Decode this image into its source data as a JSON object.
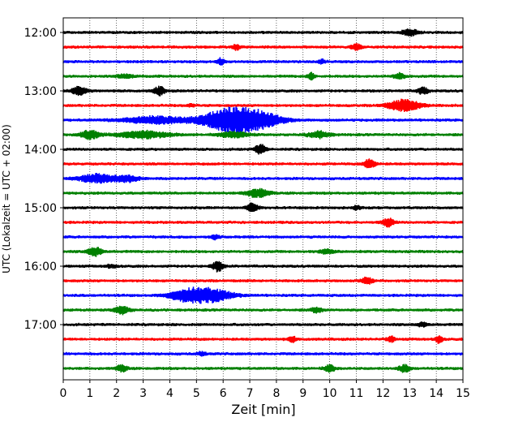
{
  "chart_data": {
    "type": "line",
    "xlabel": "Zeit  [min]",
    "ylabel": "UTC (Lokalzeit = UTC + 02:00)",
    "xlim": [
      0,
      15
    ],
    "x_ticks": [
      "0",
      "1",
      "2",
      "3",
      "4",
      "5",
      "6",
      "7",
      "8",
      "9",
      "10",
      "11",
      "12",
      "13",
      "14",
      "15"
    ],
    "y_tick_labels": [
      "12:00",
      "13:00",
      "14:00",
      "15:00",
      "16:00",
      "17:00"
    ],
    "grid": "vertical dotted at each minute",
    "trace_colors": [
      "#000000",
      "#ff0000",
      "#0000ff",
      "#008000"
    ],
    "trace_start_times": [
      "12:00",
      "12:15",
      "12:30",
      "12:45",
      "13:00",
      "13:15",
      "13:30",
      "13:45",
      "14:00",
      "14:15",
      "14:30",
      "14:45",
      "15:00",
      "15:15",
      "15:30",
      "15:45",
      "16:00",
      "16:15",
      "16:30",
      "16:45",
      "17:00",
      "17:15",
      "17:30",
      "17:45"
    ],
    "trace_minutes": 15,
    "events": [
      {
        "trace": 0,
        "minute": 13.0,
        "amp": 1.0,
        "dur": 0.4
      },
      {
        "trace": 1,
        "minute": 6.5,
        "amp": 0.7,
        "dur": 0.2
      },
      {
        "trace": 1,
        "minute": 11.0,
        "amp": 0.8,
        "dur": 0.3
      },
      {
        "trace": 2,
        "minute": 5.9,
        "amp": 1.0,
        "dur": 0.2
      },
      {
        "trace": 2,
        "minute": 9.7,
        "amp": 0.5,
        "dur": 0.2
      },
      {
        "trace": 3,
        "minute": 2.3,
        "amp": 0.6,
        "dur": 0.4
      },
      {
        "trace": 3,
        "minute": 9.3,
        "amp": 1.0,
        "dur": 0.2
      },
      {
        "trace": 3,
        "minute": 12.6,
        "amp": 0.8,
        "dur": 0.3
      },
      {
        "trace": 4,
        "minute": 0.6,
        "amp": 1.2,
        "dur": 0.4
      },
      {
        "trace": 4,
        "minute": 3.6,
        "amp": 1.2,
        "dur": 0.3
      },
      {
        "trace": 4,
        "minute": 13.5,
        "amp": 0.9,
        "dur": 0.3
      },
      {
        "trace": 5,
        "minute": 12.8,
        "amp": 1.6,
        "dur": 0.9
      },
      {
        "trace": 5,
        "minute": 4.8,
        "amp": 0.4,
        "dur": 0.2
      },
      {
        "trace": 6,
        "minute": 3.5,
        "amp": 1.0,
        "dur": 1.8
      },
      {
        "trace": 6,
        "minute": 6.1,
        "amp": 2.8,
        "dur": 1.4
      },
      {
        "trace": 6,
        "minute": 7.2,
        "amp": 2.4,
        "dur": 1.4
      },
      {
        "trace": 7,
        "minute": 1.0,
        "amp": 1.2,
        "dur": 0.5
      },
      {
        "trace": 7,
        "minute": 3.0,
        "amp": 1.0,
        "dur": 1.4
      },
      {
        "trace": 7,
        "minute": 6.4,
        "amp": 0.8,
        "dur": 0.8
      },
      {
        "trace": 7,
        "minute": 9.6,
        "amp": 0.9,
        "dur": 0.6
      },
      {
        "trace": 8,
        "minute": 7.4,
        "amp": 1.3,
        "dur": 0.3
      },
      {
        "trace": 9,
        "minute": 11.5,
        "amp": 1.4,
        "dur": 0.3
      },
      {
        "trace": 10,
        "minute": 1.3,
        "amp": 1.2,
        "dur": 1.0
      },
      {
        "trace": 10,
        "minute": 2.4,
        "amp": 0.9,
        "dur": 0.6
      },
      {
        "trace": 11,
        "minute": 7.3,
        "amp": 1.2,
        "dur": 0.6
      },
      {
        "trace": 12,
        "minute": 7.1,
        "amp": 1.2,
        "dur": 0.3
      },
      {
        "trace": 12,
        "minute": 11.0,
        "amp": 0.6,
        "dur": 0.2
      },
      {
        "trace": 13,
        "minute": 12.2,
        "amp": 1.2,
        "dur": 0.3
      },
      {
        "trace": 14,
        "minute": 5.7,
        "amp": 0.6,
        "dur": 0.2
      },
      {
        "trace": 15,
        "minute": 1.2,
        "amp": 1.2,
        "dur": 0.4
      },
      {
        "trace": 15,
        "minute": 9.9,
        "amp": 0.6,
        "dur": 0.4
      },
      {
        "trace": 16,
        "minute": 5.8,
        "amp": 1.4,
        "dur": 0.3
      },
      {
        "trace": 16,
        "minute": 1.8,
        "amp": 0.4,
        "dur": 0.3
      },
      {
        "trace": 17,
        "minute": 11.4,
        "amp": 1.0,
        "dur": 0.3
      },
      {
        "trace": 18,
        "minute": 4.6,
        "amp": 1.3,
        "dur": 1.0
      },
      {
        "trace": 18,
        "minute": 5.5,
        "amp": 1.8,
        "dur": 1.2
      },
      {
        "trace": 19,
        "minute": 2.2,
        "amp": 1.1,
        "dur": 0.4
      },
      {
        "trace": 19,
        "minute": 9.5,
        "amp": 0.7,
        "dur": 0.3
      },
      {
        "trace": 20,
        "minute": 13.5,
        "amp": 0.6,
        "dur": 0.3
      },
      {
        "trace": 21,
        "minute": 8.6,
        "amp": 0.8,
        "dur": 0.2
      },
      {
        "trace": 21,
        "minute": 12.3,
        "amp": 0.8,
        "dur": 0.2
      },
      {
        "trace": 21,
        "minute": 14.1,
        "amp": 1.0,
        "dur": 0.2
      },
      {
        "trace": 22,
        "minute": 5.2,
        "amp": 0.6,
        "dur": 0.2
      },
      {
        "trace": 23,
        "minute": 2.2,
        "amp": 0.9,
        "dur": 0.3
      },
      {
        "trace": 23,
        "minute": 10.0,
        "amp": 0.9,
        "dur": 0.3
      },
      {
        "trace": 23,
        "minute": 12.8,
        "amp": 1.0,
        "dur": 0.3
      }
    ]
  }
}
